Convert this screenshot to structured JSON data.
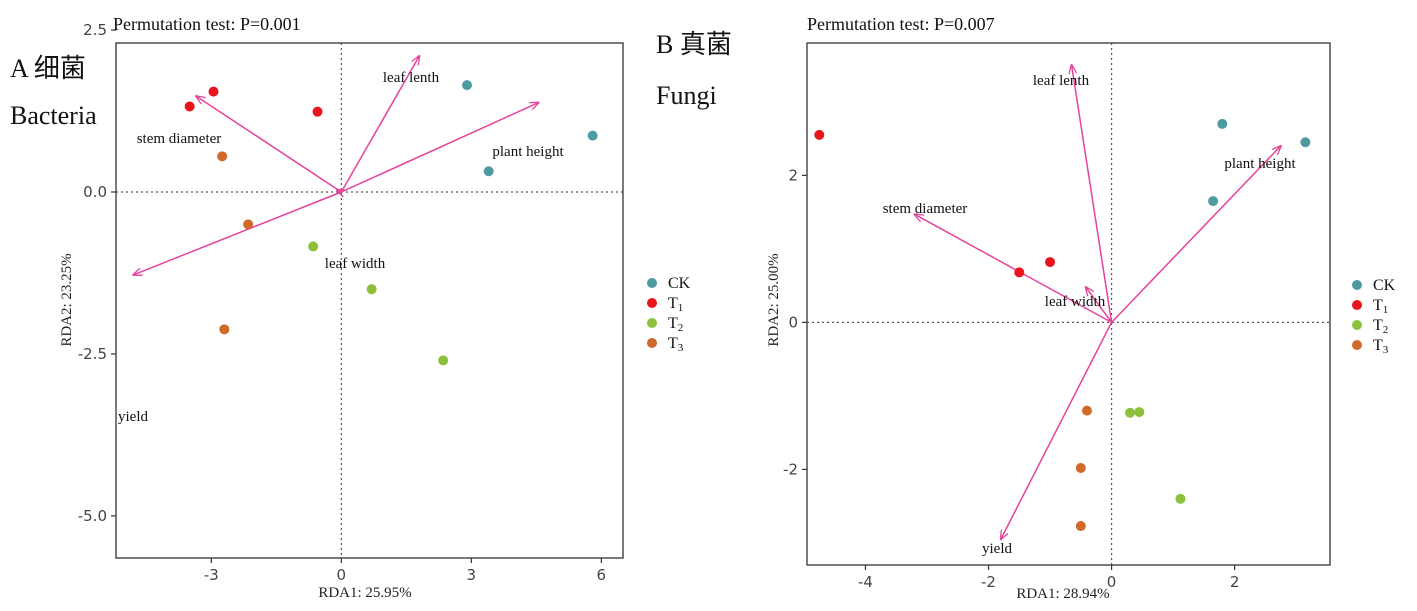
{
  "panels": [
    {
      "label_letter": "A 细菌",
      "label_en": "Bacteria",
      "title": "Permutation test: P=0.001",
      "legend": [
        "CK",
        "T1",
        "T2",
        "T3"
      ]
    },
    {
      "label_letter": "B 真菌",
      "label_en": "Fungi",
      "title": "Permutation test: P=0.007",
      "legend": [
        "CK",
        "T1",
        "T2",
        "T3"
      ]
    }
  ],
  "colors": {
    "CK": "#4e9aa3",
    "T1": "#e8161c",
    "T2": "#8dc03b",
    "T3": "#d0692a",
    "arrow": "#e6439b",
    "frame": "#333333",
    "zero_line": "#555555"
  },
  "chart_data": [
    {
      "type": "scatter",
      "title": "Permutation test: P=0.001",
      "xlabel": "RDA1: 25.95%",
      "ylabel": "RDA2: 23.25%",
      "xlim": [
        -5.2,
        6.5
      ],
      "ylim": [
        -5.65,
        2.3
      ],
      "xticks": [
        -3,
        0,
        3,
        6
      ],
      "xtick_labels": [
        "-3",
        "0",
        "3",
        "6"
      ],
      "yticks": [
        2.5,
        0,
        -2.5,
        -5
      ],
      "ytick_labels": [
        "2.5",
        "0.0",
        "-2.5",
        "-5.0"
      ],
      "grid": false,
      "legend_position": "right",
      "series": [
        {
          "name": "CK",
          "points": [
            [
              2.9,
              1.65
            ],
            [
              5.8,
              0.87
            ],
            [
              3.4,
              0.32
            ]
          ]
        },
        {
          "name": "T1",
          "points": [
            [
              -2.95,
              1.55
            ],
            [
              -3.5,
              1.32
            ],
            [
              -0.55,
              1.24
            ]
          ]
        },
        {
          "name": "T2",
          "points": [
            [
              -0.65,
              -0.84
            ],
            [
              0.7,
              -1.5
            ],
            [
              2.35,
              -2.6
            ]
          ]
        },
        {
          "name": "T3",
          "points": [
            [
              -2.75,
              0.55
            ],
            [
              -2.15,
              -0.5
            ],
            [
              -2.7,
              -2.12
            ]
          ]
        }
      ],
      "arrows": [
        {
          "label": "leaf lenth",
          "x": 1.8,
          "y": 2.1
        },
        {
          "label": "plant height",
          "x": 4.55,
          "y": 1.38
        },
        {
          "label": "stem diameter",
          "x": -3.35,
          "y": 1.48
        },
        {
          "label": "leaf width",
          "x": -0.1,
          "y": 0.03
        },
        {
          "label": "yield",
          "x": -4.8,
          "y": -1.28
        }
      ]
    },
    {
      "type": "scatter",
      "title": "Permutation test: P=0.007",
      "xlabel": "RDA1: 28.94%",
      "ylabel": "RDA2: 25.00%",
      "xlim": [
        -4.95,
        3.55
      ],
      "ylim": [
        -3.3,
        3.8
      ],
      "xticks": [
        -4,
        -2,
        0,
        2
      ],
      "xtick_labels": [
        "-4",
        "-2",
        "0",
        "2"
      ],
      "yticks": [
        2,
        0,
        -2
      ],
      "ytick_labels": [
        "2",
        "0",
        "-2"
      ],
      "grid": false,
      "legend_position": "right",
      "series": [
        {
          "name": "CK",
          "points": [
            [
              1.8,
              2.7
            ],
            [
              3.15,
              2.45
            ],
            [
              1.65,
              1.65
            ]
          ]
        },
        {
          "name": "T1",
          "points": [
            [
              -4.75,
              2.55
            ],
            [
              -1.5,
              0.68
            ],
            [
              -1.0,
              0.82
            ]
          ]
        },
        {
          "name": "T2",
          "points": [
            [
              0.3,
              -1.23
            ],
            [
              0.45,
              -1.22
            ],
            [
              1.12,
              -2.4
            ]
          ]
        },
        {
          "name": "T3",
          "points": [
            [
              -0.4,
              -1.2
            ],
            [
              -0.5,
              -1.98
            ],
            [
              -0.5,
              -2.77
            ]
          ]
        }
      ],
      "arrows": [
        {
          "label": "leaf lenth",
          "x": -0.65,
          "y": 3.5
        },
        {
          "label": "plant height",
          "x": 2.75,
          "y": 2.4
        },
        {
          "label": "stem diameter",
          "x": -3.2,
          "y": 1.47
        },
        {
          "label": "leaf width",
          "x": -0.42,
          "y": 0.48
        },
        {
          "label": "yield",
          "x": -1.8,
          "y": -2.95
        }
      ]
    }
  ]
}
